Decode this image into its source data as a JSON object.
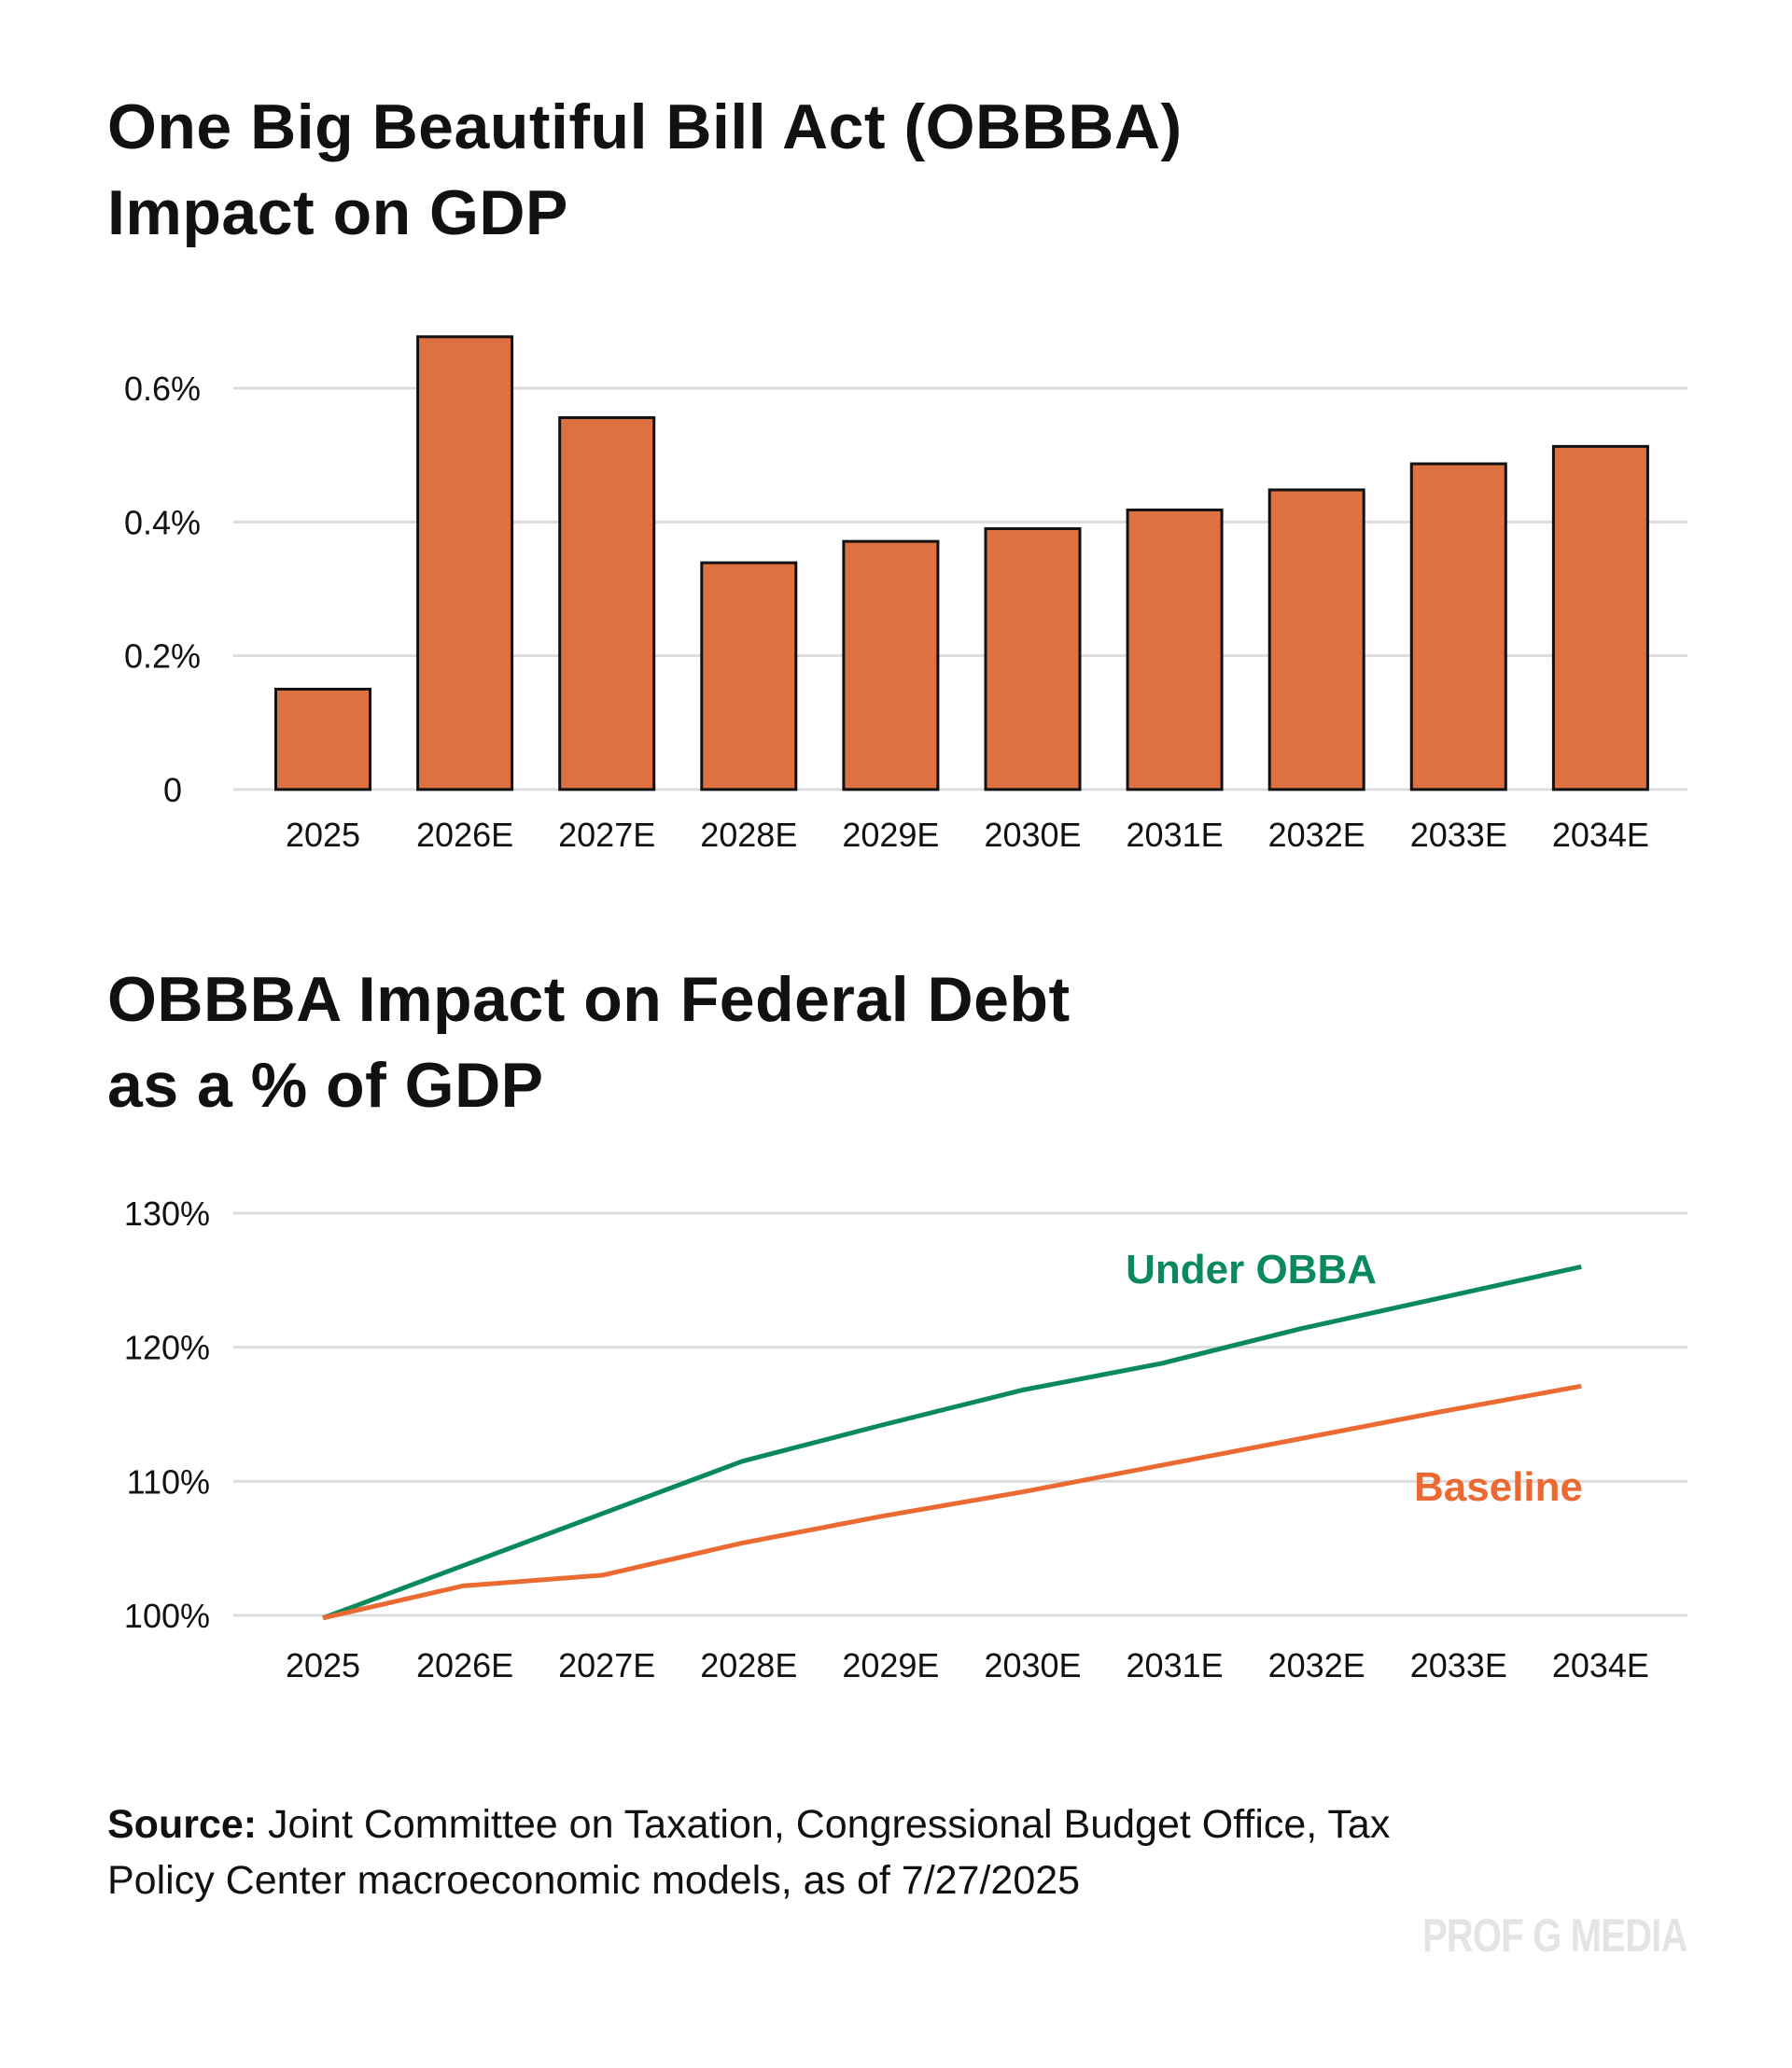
{
  "chart_data": [
    {
      "type": "bar",
      "title": "One Big Beautiful Bill Act (OBBBA) Impact on GDP",
      "title_lines": [
        "One Big Beautiful Bill Act (OBBBA)",
        "Impact on GDP"
      ],
      "categories": [
        "2025",
        "2026E",
        "2027E",
        "2028E",
        "2029E",
        "2030E",
        "2031E",
        "2032E",
        "2033E",
        "2034E"
      ],
      "values": [
        0.15,
        0.677,
        0.556,
        0.339,
        0.371,
        0.39,
        0.418,
        0.448,
        0.487,
        0.513
      ],
      "unit": "%",
      "ylim": [
        0,
        0.7
      ],
      "yticks": [
        0,
        0.2,
        0.4,
        0.6
      ],
      "ytick_labels": [
        "0",
        "0.2%",
        "0.4%",
        "0.6%"
      ],
      "grid": true,
      "color": "#DE7142"
    },
    {
      "type": "line",
      "title": "OBBBA Impact on Federal Debt as a % of GDP",
      "title_lines": [
        "OBBBA Impact on Federal Debt",
        "as a % of GDP"
      ],
      "categories": [
        "2025",
        "2026E",
        "2027E",
        "2028E",
        "2029E",
        "2030E",
        "2031E",
        "2032E",
        "2033E",
        "2034E"
      ],
      "series": [
        {
          "name": "Under OBBA",
          "color": "#0A8A5C",
          "values": [
            99.8,
            103.7,
            107.6,
            111.5,
            114.2,
            116.8,
            118.8,
            121.4,
            123.7,
            126.0
          ]
        },
        {
          "name": "Baseline",
          "color": "#EA6A32",
          "values": [
            99.8,
            102.2,
            103.0,
            105.4,
            107.4,
            109.2,
            111.2,
            113.2,
            115.2,
            117.1
          ]
        }
      ],
      "ylim": [
        100,
        130
      ],
      "yticks": [
        100,
        110,
        120,
        130
      ],
      "ytick_labels": [
        "100%",
        "110%",
        "120%",
        "130%"
      ],
      "grid": true,
      "legend": "inline-labels"
    }
  ],
  "source": {
    "label": "Source:",
    "text": " Joint Committee on Taxation, Congressional Budget Office, Tax Policy Center macroeconomic models, as of 7/27/2025"
  },
  "watermark": "PROF G MEDIA"
}
